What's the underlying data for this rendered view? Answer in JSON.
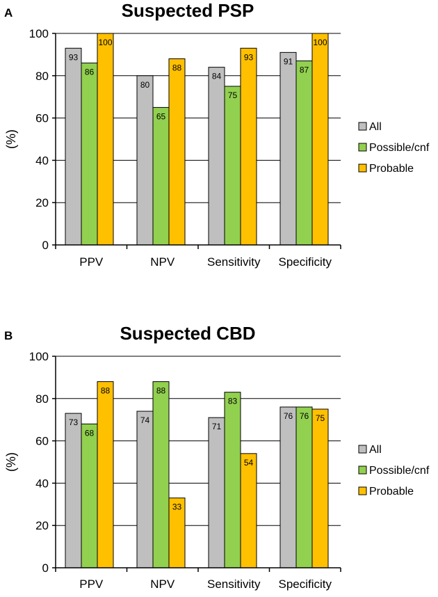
{
  "colors": {
    "All": "#bfbfbf",
    "Possible/cnf": "#92d050",
    "Probable": "#ffc000"
  },
  "chart_data": [
    {
      "panel": "A",
      "type": "bar",
      "title": "Suspected PSP",
      "ylabel": "(%)",
      "xlabel": "",
      "ylim": [
        0,
        100
      ],
      "yticks": [
        0,
        20,
        40,
        60,
        80,
        100
      ],
      "grid": "horizontal",
      "legend_position": "right",
      "categories": [
        "PPV",
        "NPV",
        "Sensitivity",
        "Specificity"
      ],
      "series": [
        {
          "name": "All",
          "values": [
            93,
            80,
            84,
            91
          ]
        },
        {
          "name": "Possible/cnf",
          "values": [
            86,
            65,
            75,
            87
          ]
        },
        {
          "name": "Probable",
          "values": [
            100,
            88,
            93,
            100
          ]
        }
      ]
    },
    {
      "panel": "B",
      "type": "bar",
      "title": "Suspected CBD",
      "ylabel": "(%)",
      "xlabel": "",
      "ylim": [
        0,
        100
      ],
      "yticks": [
        0,
        20,
        40,
        60,
        80,
        100
      ],
      "grid": "horizontal",
      "legend_position": "right",
      "categories": [
        "PPV",
        "NPV",
        "Sensitivity",
        "Specificity"
      ],
      "series": [
        {
          "name": "All",
          "values": [
            73,
            74,
            71,
            76
          ]
        },
        {
          "name": "Possible/cnf",
          "values": [
            68,
            88,
            83,
            76
          ]
        },
        {
          "name": "Probable",
          "values": [
            88,
            33,
            54,
            75
          ]
        }
      ]
    }
  ]
}
